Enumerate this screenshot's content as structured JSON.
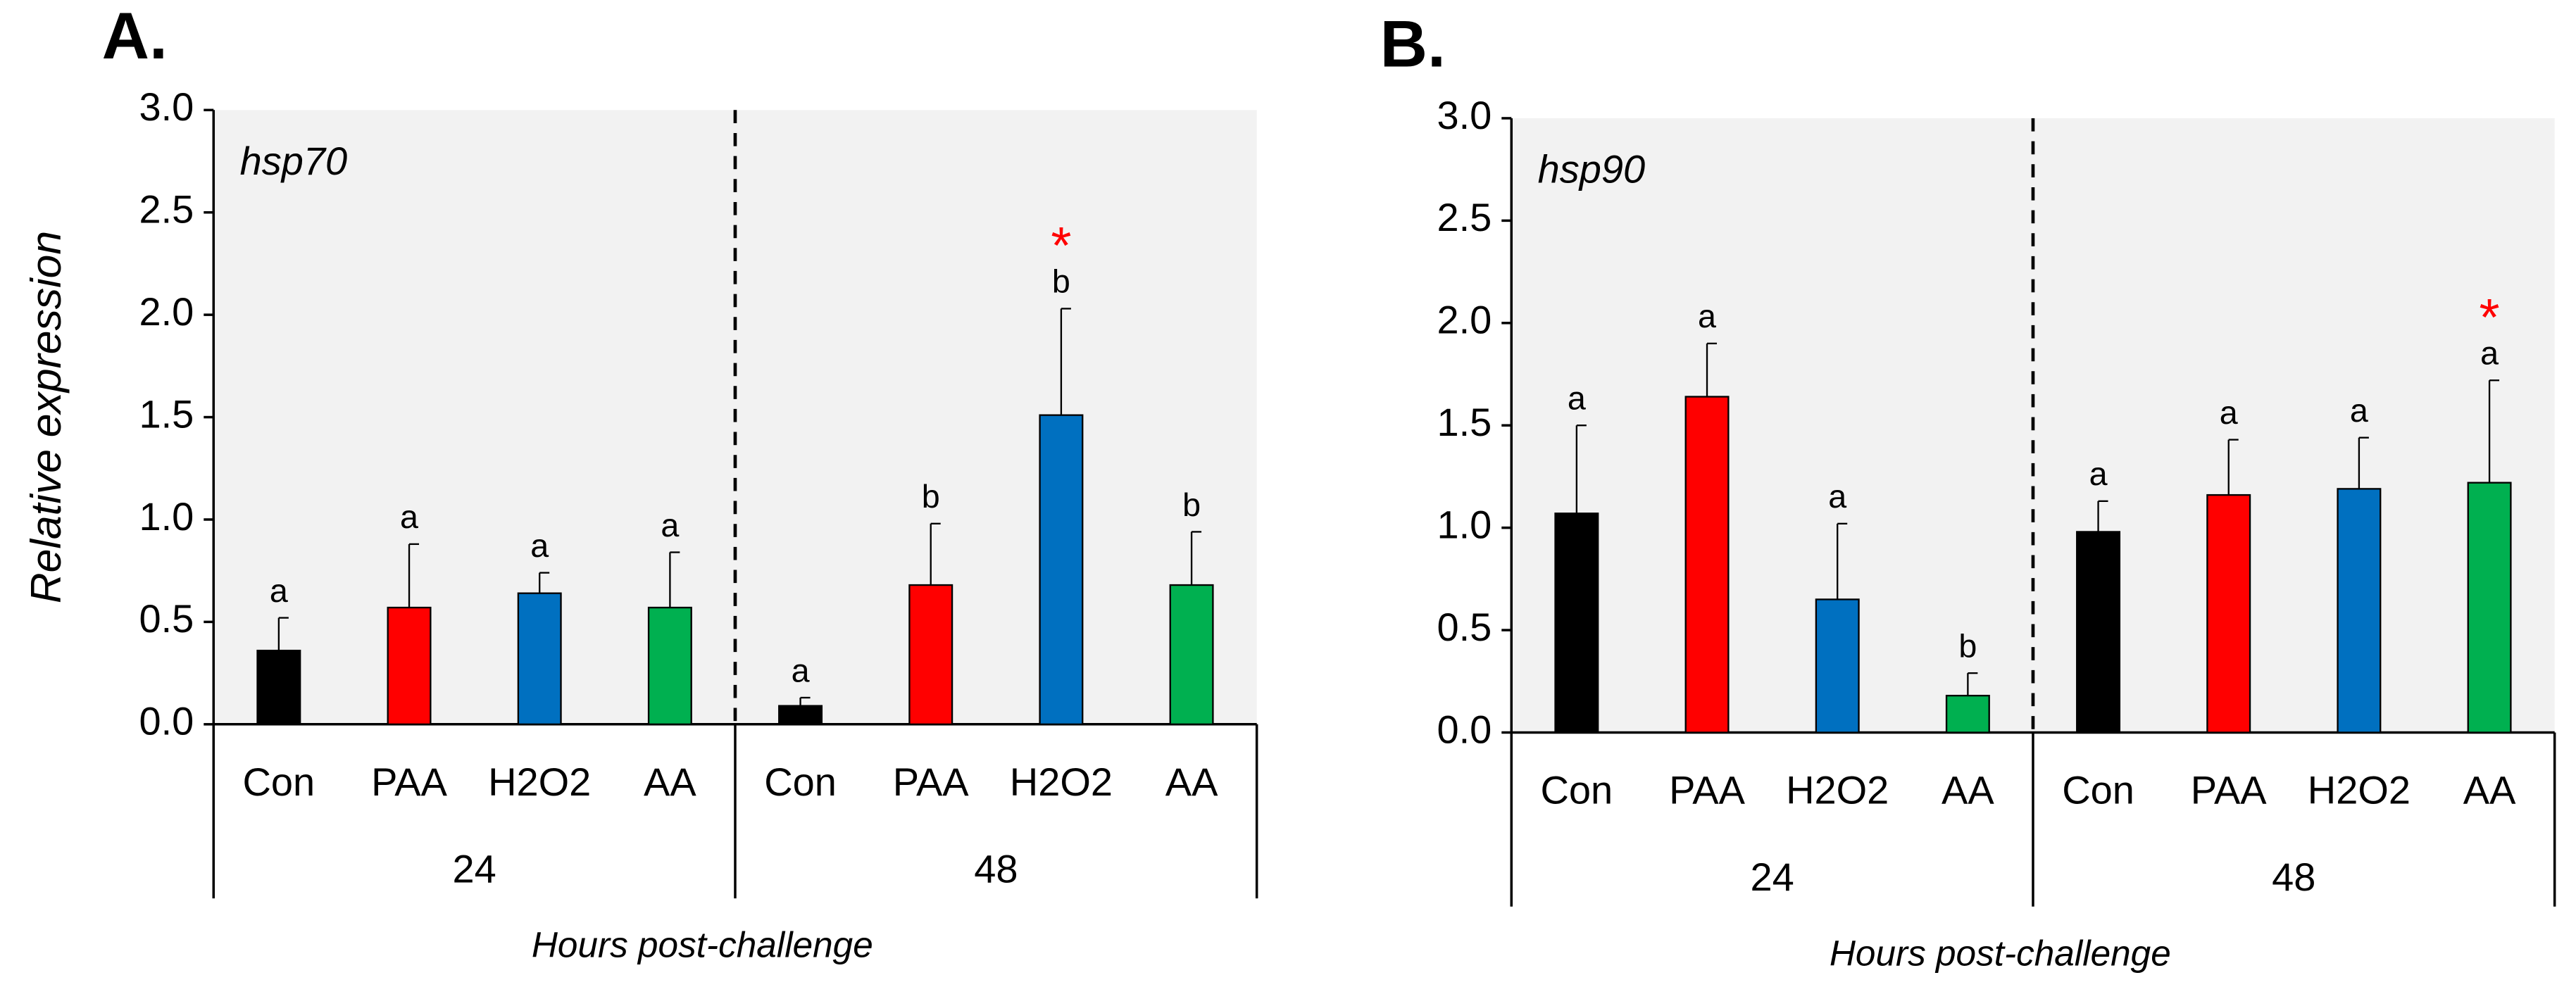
{
  "chart_data": [
    {
      "type": "bar",
      "panel": "A.",
      "title": "hsp70",
      "ylabel": "Relative expression",
      "xlabel": "Hours post-challenge",
      "categories": [
        "Con",
        "PAA",
        "H2O2",
        "AA",
        "Con",
        "PAA",
        "H2O2",
        "AA"
      ],
      "groups": [
        "24",
        "48"
      ],
      "values": [
        0.36,
        0.57,
        0.64,
        0.57,
        0.09,
        0.68,
        1.51,
        0.68
      ],
      "errors": [
        0.16,
        0.31,
        0.1,
        0.27,
        0.04,
        0.3,
        0.52,
        0.26
      ],
      "letters": [
        "a",
        "a",
        "a",
        "a",
        "a",
        "b",
        "b",
        "b"
      ],
      "stars": [
        null,
        null,
        null,
        null,
        null,
        null,
        "*",
        null
      ],
      "colors": [
        "#000000",
        "#ff0000",
        "#0070c0",
        "#00b050",
        "#000000",
        "#ff0000",
        "#0070c0",
        "#00b050"
      ],
      "ylim": [
        0,
        3
      ],
      "yticks": [
        {
          "value": 0,
          "label": "0.0"
        },
        {
          "value": 0.5,
          "label": "0.5"
        },
        {
          "value": 1,
          "label": "1.0"
        },
        {
          "value": 1.5,
          "label": "1.5"
        },
        {
          "value": 2,
          "label": "2.0"
        },
        {
          "value": 2.5,
          "label": "2.5"
        },
        {
          "value": 3,
          "label": "3.0"
        }
      ]
    },
    {
      "type": "bar",
      "panel": "B.",
      "title": "hsp90",
      "xlabel": "Hours post-challenge",
      "categories": [
        "Con",
        "PAA",
        "H2O2",
        "AA",
        "Con",
        "PAA",
        "H2O2",
        "AA"
      ],
      "groups": [
        "24",
        "48"
      ],
      "values": [
        1.07,
        1.64,
        0.65,
        0.18,
        0.98,
        1.16,
        1.19,
        1.22
      ],
      "errors": [
        0.43,
        0.26,
        0.37,
        0.11,
        0.15,
        0.27,
        0.25,
        0.5
      ],
      "letters": [
        "a",
        "a",
        "a",
        "b",
        "a",
        "a",
        "a",
        "a"
      ],
      "stars": [
        null,
        null,
        null,
        null,
        null,
        null,
        null,
        "*"
      ],
      "colors": [
        "#000000",
        "#ff0000",
        "#0070c0",
        "#00b050",
        "#000000",
        "#ff0000",
        "#0070c0",
        "#00b050"
      ],
      "ylim": [
        0,
        3
      ],
      "yticks": [
        {
          "value": 0,
          "label": "0.0"
        },
        {
          "value": 0.5,
          "label": "0.5"
        },
        {
          "value": 1,
          "label": "1.0"
        },
        {
          "value": 1.5,
          "label": "1.5"
        },
        {
          "value": 2,
          "label": "2.0"
        },
        {
          "value": 2.5,
          "label": "2.5"
        },
        {
          "value": 3,
          "label": "3.0"
        }
      ]
    }
  ]
}
